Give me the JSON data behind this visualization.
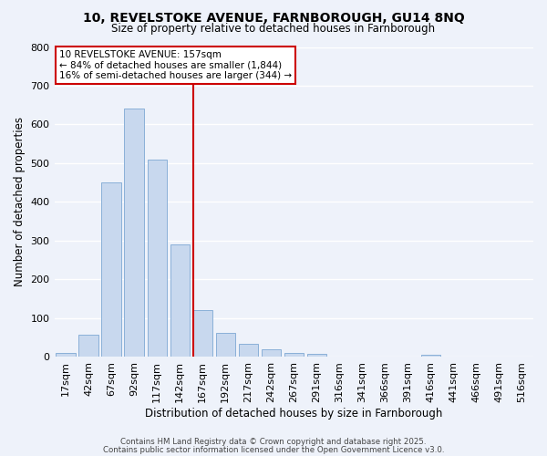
{
  "title_line1": "10, REVELSTOKE AVENUE, FARNBOROUGH, GU14 8NQ",
  "title_line2": "Size of property relative to detached houses in Farnborough",
  "xlabel": "Distribution of detached houses by size in Farnborough",
  "ylabel": "Number of detached properties",
  "bar_labels": [
    "17sqm",
    "42sqm",
    "67sqm",
    "92sqm",
    "117sqm",
    "142sqm",
    "167sqm",
    "192sqm",
    "217sqm",
    "242sqm",
    "267sqm",
    "291sqm",
    "316sqm",
    "341sqm",
    "366sqm",
    "391sqm",
    "416sqm",
    "441sqm",
    "466sqm",
    "491sqm",
    "516sqm"
  ],
  "bar_heights": [
    10,
    57,
    450,
    640,
    510,
    290,
    120,
    63,
    35,
    20,
    10,
    8,
    0,
    0,
    0,
    0,
    5,
    0,
    0,
    0,
    0
  ],
  "bar_color": "#c8d8ee",
  "bar_edge_color": "#8ab0d8",
  "bar_width": 0.85,
  "vline_color": "#cc0000",
  "vline_x": 5.6,
  "annotation_line1": "10 REVELSTOKE AVENUE: 157sqm",
  "annotation_line2": "← 84% of detached houses are smaller (1,844)",
  "annotation_line3": "16% of semi-detached houses are larger (344) →",
  "annotation_box_color": "#ffffff",
  "annotation_box_edge": "#cc0000",
  "ylim": [
    0,
    800
  ],
  "background_color": "#eef2fa",
  "grid_color": "#ffffff",
  "footnote1": "Contains HM Land Registry data © Crown copyright and database right 2025.",
  "footnote2": "Contains public sector information licensed under the Open Government Licence v3.0."
}
